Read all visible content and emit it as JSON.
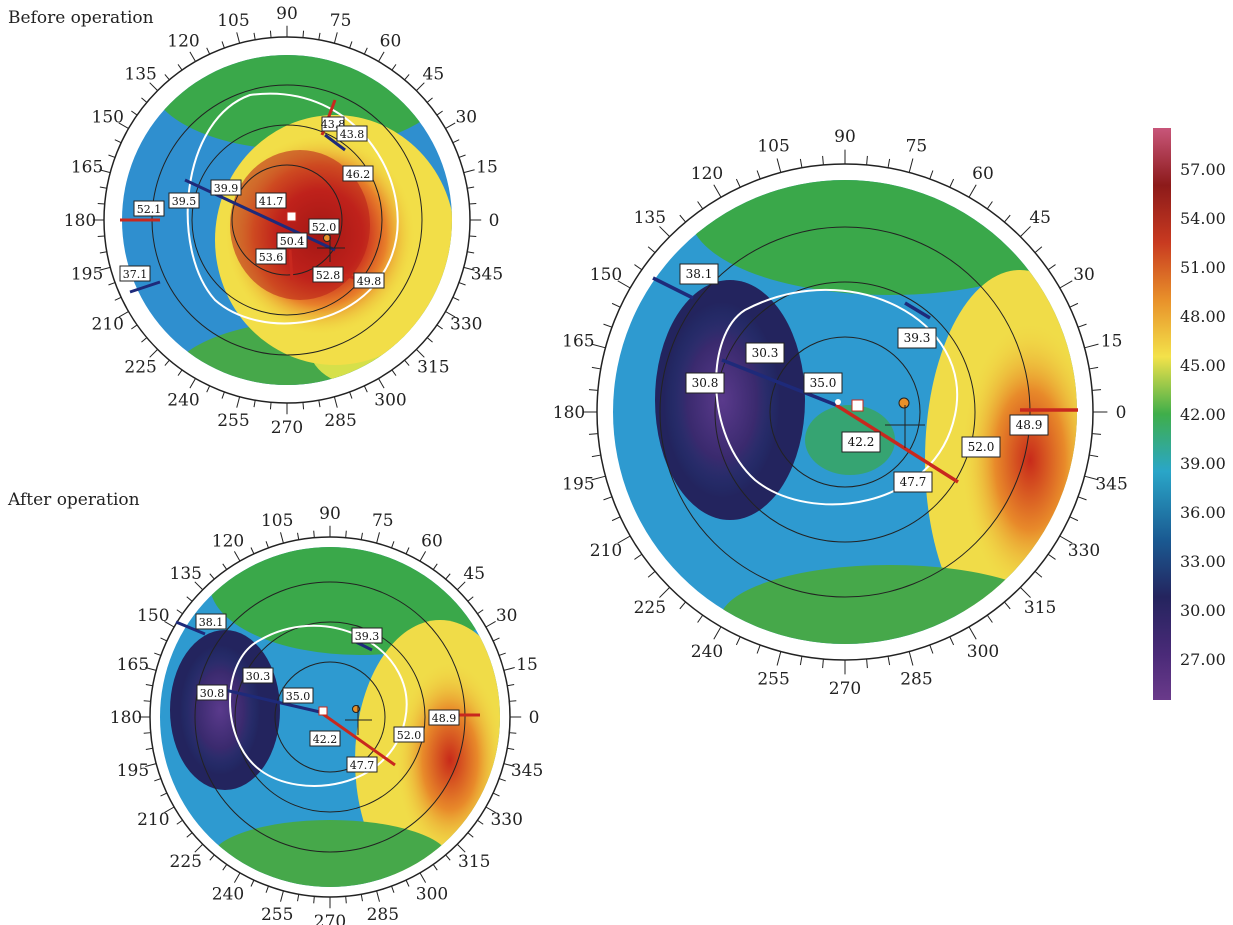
{
  "captions": {
    "before": "Before operation",
    "after": "After operation"
  },
  "angle_labels": [
    "0",
    "15",
    "30",
    "45",
    "60",
    "75",
    "90",
    "105",
    "120",
    "135",
    "150",
    "165",
    "180",
    "195",
    "210",
    "225",
    "240",
    "255",
    "270",
    "285",
    "300",
    "315",
    "330",
    "345"
  ],
  "color_scale": {
    "values": [
      "57.00",
      "54.00",
      "51.00",
      "48.00",
      "45.00",
      "42.00",
      "39.00",
      "36.00",
      "33.00",
      "30.00",
      "27.00"
    ],
    "colors": [
      "#c8567a",
      "#8c1a1a",
      "#c83a20",
      "#e8902a",
      "#f3e24a",
      "#3fae4a",
      "#2aa6c8",
      "#1a5a92",
      "#24245e",
      "#4a2a78",
      "#6a3a8a"
    ]
  },
  "maps": [
    {
      "id": "before",
      "labels": [
        "43.8",
        "43.8",
        "46.2",
        "52.1",
        "39.5",
        "39.9",
        "41.7",
        "52.0",
        "50.4",
        "53.6",
        "52.8",
        "49.8",
        "37.1"
      ]
    },
    {
      "id": "after-small",
      "labels": [
        "38.1",
        "30.3",
        "39.3",
        "30.8",
        "35.0",
        "42.2",
        "52.0",
        "48.9",
        "47.7"
      ]
    },
    {
      "id": "after-large",
      "labels": [
        "38.1",
        "30.3",
        "39.3",
        "30.8",
        "35.0",
        "42.2",
        "52.0",
        "48.9",
        "47.7"
      ]
    }
  ]
}
